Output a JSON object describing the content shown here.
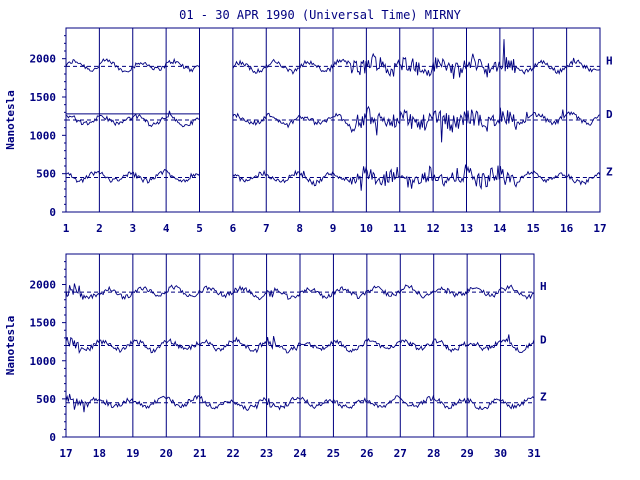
{
  "title": "01 - 30 APR 1990 (Universal Time) MIRNY",
  "colors": {
    "ink": "#000080",
    "background": "#ffffff"
  },
  "chart_data": [
    {
      "type": "line",
      "panel": "top",
      "ylabel": "Nanotesla",
      "ylim": [
        0,
        2400
      ],
      "yticks": [
        0,
        500,
        1000,
        1500,
        2000
      ],
      "xlim": [
        1,
        17
      ],
      "xticks": [
        1,
        2,
        3,
        4,
        5,
        6,
        7,
        8,
        9,
        10,
        11,
        12,
        13,
        14,
        15,
        16,
        17
      ],
      "data_gap": [
        5,
        6
      ],
      "baselines": {
        "H": 1900,
        "D": 1200,
        "Z": 450
      },
      "series": [
        {
          "name": "H",
          "baseline": 1900
        },
        {
          "name": "D",
          "baseline": 1200
        },
        {
          "name": "Z",
          "baseline": 450
        }
      ]
    },
    {
      "type": "line",
      "panel": "bottom",
      "ylabel": "Nanotesla",
      "ylim": [
        0,
        2400
      ],
      "yticks": [
        0,
        500,
        1000,
        1500,
        2000
      ],
      "xlim": [
        17,
        31
      ],
      "xticks": [
        17,
        18,
        19,
        20,
        21,
        22,
        23,
        24,
        25,
        26,
        27,
        28,
        29,
        30,
        31
      ],
      "baselines": {
        "H": 1900,
        "D": 1200,
        "Z": 450
      },
      "series": [
        {
          "name": "H",
          "baseline": 1900
        },
        {
          "name": "D",
          "baseline": 1200
        },
        {
          "name": "Z",
          "baseline": 450
        }
      ]
    }
  ]
}
